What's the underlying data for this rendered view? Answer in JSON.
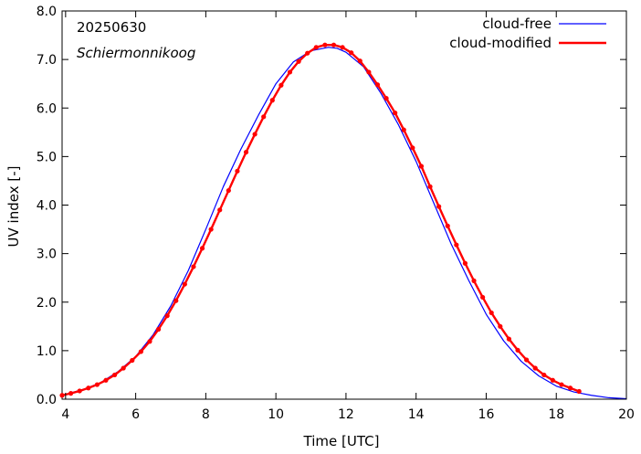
{
  "chart_data": {
    "type": "line",
    "title": "",
    "xlabel": "Time  [UTC]",
    "ylabel": "UV index  [-]",
    "xlim": [
      3.9,
      20
    ],
    "ylim": [
      0,
      8
    ],
    "xticks": [
      4,
      6,
      8,
      10,
      12,
      14,
      16,
      18,
      20
    ],
    "xtick_labels": [
      "4",
      "6",
      "8",
      "10",
      "12",
      "14",
      "16",
      "18",
      "20"
    ],
    "yticks": [
      0,
      1,
      2,
      3,
      4,
      5,
      6,
      7,
      8
    ],
    "ytick_labels": [
      "0.0",
      "1.0",
      "2.0",
      "3.0",
      "4.0",
      "5.0",
      "6.0",
      "7.0",
      "8.0"
    ],
    "grid": false,
    "legend_position": "top-right",
    "annotations": [
      "20250630",
      "Schiermonnikoog"
    ],
    "series": [
      {
        "name": "cloud-free",
        "color": "#0000ff",
        "style": "line",
        "x": [
          3.9,
          4.0,
          4.5,
          5.0,
          5.5,
          6.0,
          6.5,
          7.0,
          7.5,
          8.0,
          8.5,
          9.0,
          9.5,
          10.0,
          10.5,
          11.0,
          11.5,
          11.75,
          12.0,
          12.5,
          13.0,
          13.5,
          14.0,
          14.5,
          15.0,
          15.5,
          16.0,
          16.5,
          17.0,
          17.5,
          18.0,
          18.5,
          19.0,
          19.5,
          20.0
        ],
        "y": [
          0.08,
          0.1,
          0.2,
          0.34,
          0.57,
          0.88,
          1.33,
          1.92,
          2.65,
          3.5,
          4.38,
          5.15,
          5.85,
          6.5,
          6.95,
          7.18,
          7.25,
          7.23,
          7.15,
          6.85,
          6.3,
          5.65,
          4.9,
          4.05,
          3.2,
          2.45,
          1.75,
          1.2,
          0.78,
          0.48,
          0.27,
          0.15,
          0.08,
          0.03,
          0.01
        ]
      },
      {
        "name": "cloud-modified",
        "color": "#ff0000",
        "style": "line-markers",
        "x": [
          3.9,
          4.15,
          4.4,
          4.65,
          4.9,
          5.15,
          5.4,
          5.65,
          5.9,
          6.15,
          6.4,
          6.65,
          6.9,
          7.15,
          7.4,
          7.65,
          7.9,
          8.15,
          8.4,
          8.65,
          8.9,
          9.15,
          9.4,
          9.65,
          9.9,
          10.15,
          10.4,
          10.65,
          10.9,
          11.15,
          11.4,
          11.65,
          11.9,
          12.15,
          12.4,
          12.65,
          12.9,
          13.15,
          13.4,
          13.65,
          13.9,
          14.15,
          14.4,
          14.65,
          14.9,
          15.15,
          15.4,
          15.65,
          15.9,
          16.15,
          16.4,
          16.65,
          16.9,
          17.15,
          17.4,
          17.65,
          17.9,
          18.15,
          18.4,
          18.65
        ],
        "y": [
          0.08,
          0.12,
          0.17,
          0.23,
          0.3,
          0.39,
          0.5,
          0.64,
          0.8,
          0.98,
          1.19,
          1.44,
          1.72,
          2.03,
          2.37,
          2.73,
          3.11,
          3.5,
          3.9,
          4.3,
          4.7,
          5.09,
          5.46,
          5.82,
          6.16,
          6.47,
          6.74,
          6.96,
          7.13,
          7.25,
          7.3,
          7.3,
          7.25,
          7.14,
          6.97,
          6.74,
          6.48,
          6.2,
          5.9,
          5.55,
          5.18,
          4.8,
          4.38,
          3.97,
          3.57,
          3.18,
          2.8,
          2.44,
          2.1,
          1.78,
          1.5,
          1.24,
          1.01,
          0.81,
          0.64,
          0.5,
          0.39,
          0.3,
          0.23,
          0.16
        ]
      }
    ]
  }
}
